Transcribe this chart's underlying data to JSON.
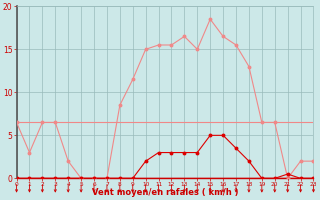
{
  "x": [
    0,
    1,
    2,
    3,
    4,
    5,
    6,
    7,
    8,
    9,
    10,
    11,
    12,
    13,
    14,
    15,
    16,
    17,
    18,
    19,
    20,
    21,
    22,
    23
  ],
  "rafales": [
    6.5,
    3.0,
    6.5,
    6.5,
    2.0,
    0,
    0,
    0,
    8.5,
    11.5,
    15.0,
    15.5,
    15.5,
    16.5,
    15.0,
    18.5,
    16.5,
    15.5,
    13.0,
    6.5,
    6.5,
    0,
    2.0,
    2.0
  ],
  "vent_moyen": [
    0,
    0,
    0,
    0,
    0,
    0,
    0,
    0,
    0,
    0,
    2.0,
    3.0,
    3.0,
    3.0,
    3.0,
    5.0,
    5.0,
    3.5,
    2.0,
    0,
    0,
    0.5,
    0,
    0
  ],
  "zero_line_y": 0,
  "trend_y": 6.5,
  "bg_color": "#cce8e8",
  "line_color_rafales": "#f08888",
  "line_color_vent": "#dd0000",
  "line_color_zero": "#dd0000",
  "line_color_trend": "#f08888",
  "grid_color": "#99bbbb",
  "spine_left_color": "#555555",
  "tick_color": "#cc0000",
  "xlabel": "Vent moyen/en rafales ( km/h )",
  "ylim": [
    0,
    20
  ],
  "xlim": [
    0,
    23
  ],
  "yticks": [
    0,
    5,
    10,
    15,
    20
  ],
  "xticks": [
    0,
    1,
    2,
    3,
    4,
    5,
    6,
    7,
    8,
    9,
    10,
    11,
    12,
    13,
    14,
    15,
    16,
    17,
    18,
    19,
    20,
    21,
    22,
    23
  ]
}
